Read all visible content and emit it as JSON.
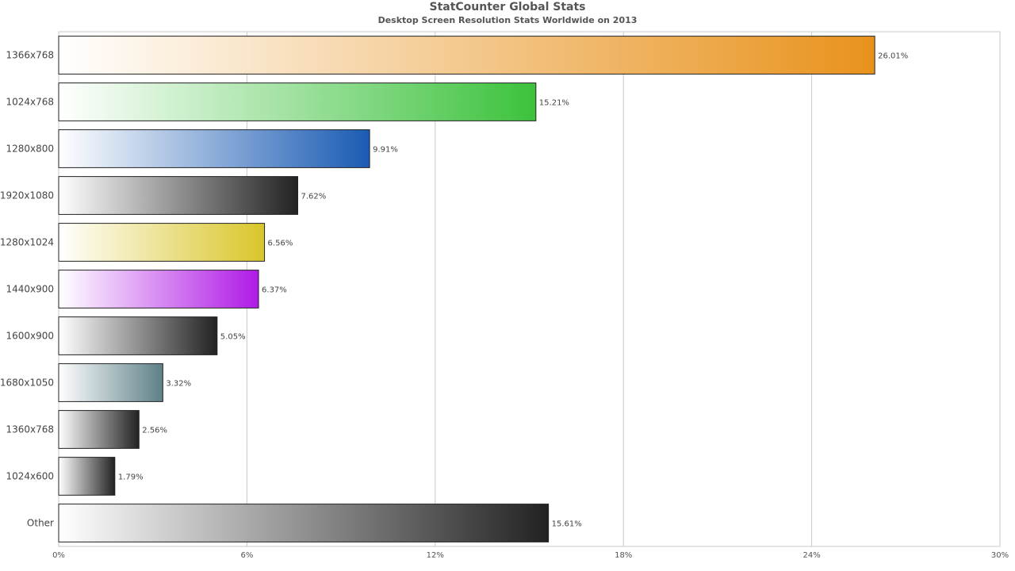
{
  "chart_data": {
    "type": "bar",
    "orientation": "horizontal",
    "title": "StatCounter Global Stats",
    "subtitle": "Desktop Screen Resolution Stats Worldwide on 2013",
    "xlabel": "",
    "ylabel": "",
    "xlim": [
      0,
      30
    ],
    "x_ticks": [
      0,
      6,
      12,
      18,
      24,
      30
    ],
    "x_tick_labels": [
      "0%",
      "6%",
      "12%",
      "18%",
      "24%",
      "30%"
    ],
    "grid": "vertical",
    "value_suffix": "%",
    "bars": [
      {
        "category": "1366x768",
        "value": 26.01,
        "label": "26.01%",
        "color": "#e8921c"
      },
      {
        "category": "1024x768",
        "value": 15.21,
        "label": "15.21%",
        "color": "#3cc23c"
      },
      {
        "category": "1280x800",
        "value": 9.91,
        "label": "9.91%",
        "color": "#1a5bb3"
      },
      {
        "category": "1920x1080",
        "value": 7.62,
        "label": "7.62%",
        "color": "#222222"
      },
      {
        "category": "1280x1024",
        "value": 6.56,
        "label": "6.56%",
        "color": "#d9c62a"
      },
      {
        "category": "1440x900",
        "value": 6.37,
        "label": "6.37%",
        "color": "#b01ae6"
      },
      {
        "category": "1600x900",
        "value": 5.05,
        "label": "5.05%",
        "color": "#222222"
      },
      {
        "category": "1680x1050",
        "value": 3.32,
        "label": "3.32%",
        "color": "#5e8088"
      },
      {
        "category": "1360x768",
        "value": 2.56,
        "label": "2.56%",
        "color": "#222222"
      },
      {
        "category": "1024x600",
        "value": 1.79,
        "label": "1.79%",
        "color": "#222222"
      },
      {
        "category": "Other",
        "value": 15.61,
        "label": "15.61%",
        "color": "#222222"
      }
    ]
  }
}
